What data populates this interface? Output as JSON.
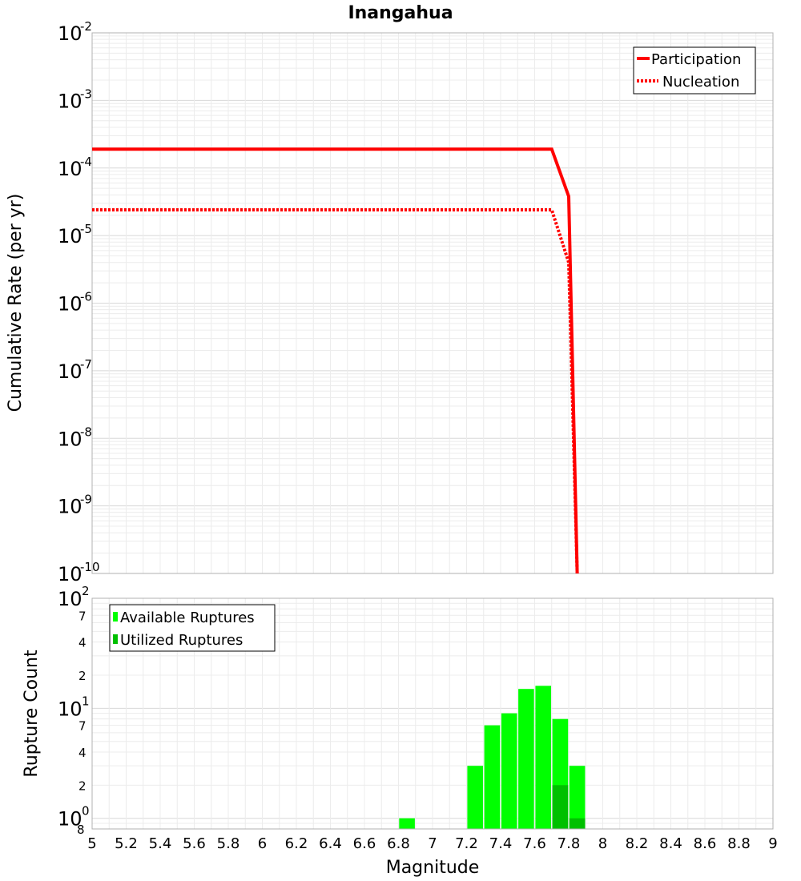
{
  "chart_data": [
    {
      "type": "line",
      "title": "Inangahua",
      "xlabel": "",
      "ylabel": "Cumulative Rate (per yr)",
      "xlim": [
        5,
        9
      ],
      "ylim": [
        1e-10,
        0.01
      ],
      "yscale": "log",
      "grid": true,
      "legend_position": "top-right",
      "y_ticks": [
        {
          "base": "10",
          "exp": "-2",
          "value": 0.01
        },
        {
          "base": "10",
          "exp": "-3",
          "value": 0.001
        },
        {
          "base": "10",
          "exp": "-4",
          "value": 0.0001
        },
        {
          "base": "10",
          "exp": "-5",
          "value": 1e-05
        },
        {
          "base": "10",
          "exp": "-6",
          "value": 1e-06
        },
        {
          "base": "10",
          "exp": "-7",
          "value": 1e-07
        },
        {
          "base": "10",
          "exp": "-8",
          "value": 1e-08
        },
        {
          "base": "10",
          "exp": "-9",
          "value": 1e-09
        },
        {
          "base": "10",
          "exp": "-10",
          "value": 1e-10
        }
      ],
      "series": [
        {
          "name": "Participation",
          "color": "#ff0000",
          "style": "solid",
          "x": [
            5.0,
            7.7,
            7.8,
            7.85
          ],
          "y": [
            0.00019,
            0.00019,
            3.8e-05,
            1e-10
          ]
        },
        {
          "name": "Nucleation",
          "color": "#ff0000",
          "style": "dotted",
          "x": [
            5.0,
            7.7,
            7.8,
            7.85
          ],
          "y": [
            2.4e-05,
            2.4e-05,
            4e-06,
            1e-10
          ]
        }
      ]
    },
    {
      "type": "bar",
      "xlabel": "Magnitude",
      "ylabel": "Rupture Count",
      "xlim": [
        5,
        9
      ],
      "ylim": [
        0.8,
        100
      ],
      "yscale": "log",
      "grid": true,
      "legend_position": "top-left",
      "x_ticks": [
        "5",
        "5.2",
        "5.4",
        "5.6",
        "5.8",
        "6",
        "6.2",
        "6.4",
        "6.6",
        "6.8",
        "7",
        "7.2",
        "7.4",
        "7.6",
        "7.8",
        "8",
        "8.2",
        "8.4",
        "8.6",
        "8.8",
        "9"
      ],
      "y_major_ticks": [
        {
          "base": "10",
          "exp": "2",
          "value": 100
        },
        {
          "base": "10",
          "exp": "1",
          "value": 10
        },
        {
          "base": "10",
          "exp": "0",
          "value": 1
        }
      ],
      "y_minor_ticks": [
        {
          "label": "7",
          "value": 70
        },
        {
          "label": "4",
          "value": 40
        },
        {
          "label": "2",
          "value": 20
        },
        {
          "label": "7",
          "value": 7
        },
        {
          "label": "4",
          "value": 4
        },
        {
          "label": "2",
          "value": 2
        },
        {
          "label": "8",
          "value": 0.8
        }
      ],
      "series": [
        {
          "name": "Available Ruptures",
          "color": "#00ff00",
          "x": [
            6.85,
            7.25,
            7.35,
            7.45,
            7.55,
            7.65,
            7.75,
            7.85
          ],
          "values": [
            1,
            3,
            7,
            9,
            15,
            16,
            8,
            3
          ]
        },
        {
          "name": "Utilized Ruptures",
          "color": "#00c000",
          "x": [
            7.75,
            7.85
          ],
          "values": [
            2,
            1
          ]
        }
      ]
    }
  ]
}
